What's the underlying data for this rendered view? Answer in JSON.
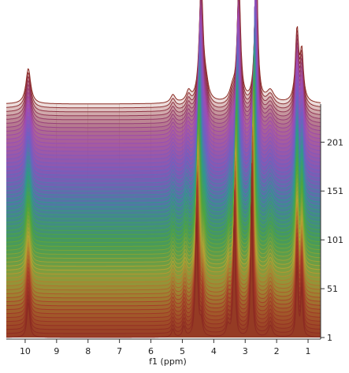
{
  "chart_data": {
    "type": "line",
    "subtype": "stacked-spectra-waterfall",
    "xlabel": "f1 (ppm)",
    "x_reversed": true,
    "xlim": [
      10.6,
      0.6
    ],
    "x_ticks": [
      "10",
      "9",
      "8",
      "7",
      "6",
      "5",
      "4",
      "3",
      "2",
      "1"
    ],
    "x_tick_values": [
      10,
      9,
      8,
      7,
      6,
      5,
      4,
      3,
      2,
      1
    ],
    "ylabel": "",
    "y_ticks": [
      "1",
      "51",
      "101",
      "151",
      "201"
    ],
    "y_tick_values": [
      1,
      51,
      101,
      151,
      201
    ],
    "spectrum_range": [
      1,
      240
    ],
    "spectrum_count_drawn": 60,
    "peaks": [
      {
        "ppm": 9.9,
        "height": 0.3,
        "width": 0.05
      },
      {
        "ppm": 5.3,
        "height": 0.07,
        "width": 0.05
      },
      {
        "ppm": 4.95,
        "height": 0.09,
        "width": 0.05
      },
      {
        "ppm": 4.55,
        "height": 1.0,
        "width": 0.04
      },
      {
        "ppm": 4.4,
        "height": 0.12,
        "width": 0.05
      },
      {
        "ppm": 3.55,
        "height": 0.1,
        "width": 0.06
      },
      {
        "ppm": 3.35,
        "height": 1.0,
        "width": 0.035
      },
      {
        "ppm": 2.8,
        "height": 1.3,
        "width": 0.03
      },
      {
        "ppm": 2.2,
        "height": 0.1,
        "width": 0.08
      },
      {
        "ppm": 1.35,
        "height": 0.6,
        "width": 0.035
      },
      {
        "ppm": 1.2,
        "height": 0.4,
        "width": 0.035
      }
    ],
    "color_scale": [
      "#8b2a22",
      "#a83c28",
      "#b7a233",
      "#4fa63a",
      "#2f9a8a",
      "#6b63c4",
      "#a04ab5",
      "#8b2a22"
    ],
    "grid": true,
    "legend": "none"
  }
}
